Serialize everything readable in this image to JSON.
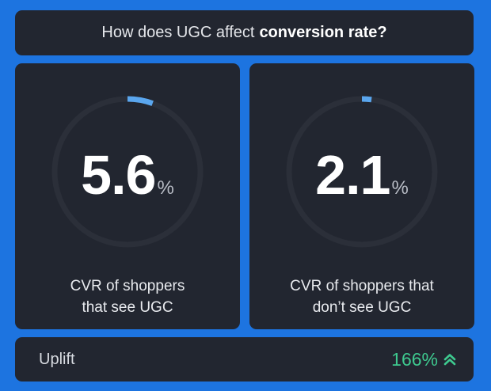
{
  "header": {
    "prefix": "How does UGC affect",
    "emphasis": "conversion rate?"
  },
  "cards": [
    {
      "value": "5.6",
      "unit": "%",
      "progress_fraction": 0.056,
      "caption_line1": "CVR of shoppers",
      "caption_line2": "that see UGC"
    },
    {
      "value": "2.1",
      "unit": "%",
      "progress_fraction": 0.021,
      "caption_line1": "CVR of shoppers that",
      "caption_line2": "don’t see UGC"
    }
  ],
  "footer": {
    "label": "Uplift",
    "value": "166%",
    "icon": "double-chevron-up-icon"
  },
  "colors": {
    "background": "#1d74e0",
    "panel": "#222630",
    "progress": "#5aa6ee",
    "uplift": "#3ec98f"
  }
}
